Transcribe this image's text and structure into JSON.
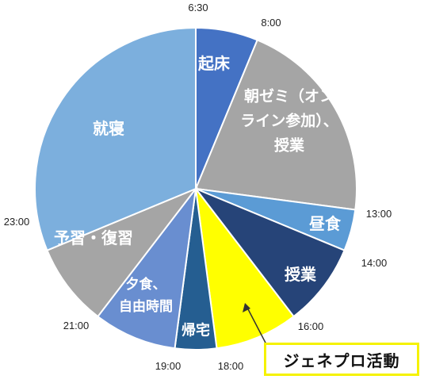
{
  "chart_data": {
    "type": "pie",
    "slices": [
      {
        "label": "起床",
        "lines": [
          "起床"
        ],
        "start": "6:30",
        "end": "8:00",
        "hours": 1.5,
        "color": "#4472c4"
      },
      {
        "label": "朝ゼミ（オンライン参加）、授業",
        "lines": [
          "朝ゼミ（オン",
          "ライン参加）、",
          "授業"
        ],
        "start": "8:00",
        "end": "13:00",
        "hours": 5,
        "color": "#a5a5a5"
      },
      {
        "label": "昼食",
        "lines": [
          "昼食"
        ],
        "start": "13:00",
        "end": "14:00",
        "hours": 1,
        "color": "#5b9bd5"
      },
      {
        "label": "授業",
        "lines": [
          "授業"
        ],
        "start": "14:00",
        "end": "16:00",
        "hours": 2,
        "color": "#264478"
      },
      {
        "label": "ジェネプロ活動",
        "lines": [],
        "start": "16:00",
        "end": "18:00",
        "hours": 2,
        "color": "#ffff00"
      },
      {
        "label": "帰宅",
        "lines": [
          "帰宅"
        ],
        "start": "18:00",
        "end": "19:00",
        "hours": 1,
        "color": "#255e91"
      },
      {
        "label": "夕食、自由時間",
        "lines": [
          "夕食、",
          "自由時間"
        ],
        "start": "19:00",
        "end": "21:00",
        "hours": 2,
        "color": "#698ed0"
      },
      {
        "label": "予習・復習",
        "lines": [
          "予習・復習"
        ],
        "start": "21:00",
        "end": "23:00",
        "hours": 2,
        "color": "#a5a5a5"
      },
      {
        "label": "就寝",
        "lines": [
          "就寝"
        ],
        "start": "23:00",
        "end": "6:30",
        "hours": 7.5,
        "color": "#7cafdd"
      }
    ],
    "time_labels": [
      "6:30",
      "8:00",
      "13:00",
      "14:00",
      "16:00",
      "18:00",
      "19:00",
      "21:00",
      "23:00"
    ],
    "callout": {
      "text": "ジェネプロ活動",
      "border_color": "#f5f200"
    }
  }
}
